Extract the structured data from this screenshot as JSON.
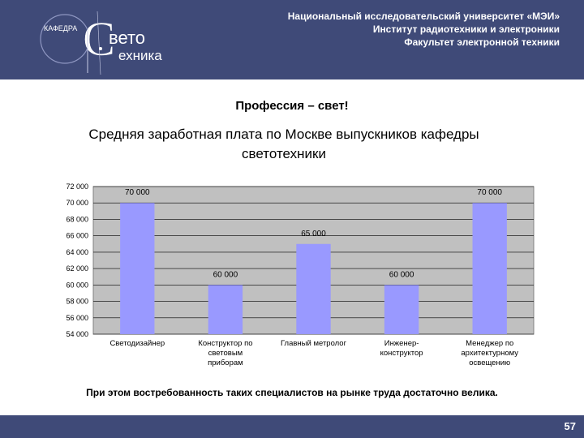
{
  "header": {
    "logo": {
      "small": "КАФЕДРА",
      "word1": "вето",
      "word2": "ехника",
      "glyph": "С"
    },
    "org_lines": [
      "Национальный исследовательский университет «МЭИ»",
      "Институт радиотехники и электроники",
      "Факультет электронной техники"
    ]
  },
  "slide": {
    "subtitle": "Профессия – свет!",
    "title_line1": "Средняя заработная плата по Москве выпускников кафедры",
    "title_line2": "светотехники"
  },
  "chart_data": {
    "type": "bar",
    "categories": [
      [
        "Светодизайнер"
      ],
      [
        "Конструктор по",
        "световым",
        "приборам"
      ],
      [
        "Главный метролог"
      ],
      [
        "Инженер-",
        "конструктор"
      ],
      [
        "Менеджер по",
        "архитектурному",
        "освещению"
      ]
    ],
    "values": [
      70000,
      60000,
      65000,
      60000,
      70000
    ],
    "value_labels": [
      "70 000",
      "60 000",
      "65 000",
      "60 000",
      "70 000"
    ],
    "y_ticks": [
      "72 000",
      "70 000",
      "68 000",
      "66 000",
      "64 000",
      "62 000",
      "60 000",
      "58 000",
      "56 000",
      "54 000"
    ],
    "ylim": [
      54000,
      72000
    ],
    "grid": true,
    "colors": {
      "bar": "#9999ff",
      "plot_bg": "#c0c0c0",
      "grid": "#000000"
    }
  },
  "note": "При этом востребованность таких специалистов на рынке труда достаточно велика.",
  "footer": {
    "page_number": "57"
  }
}
